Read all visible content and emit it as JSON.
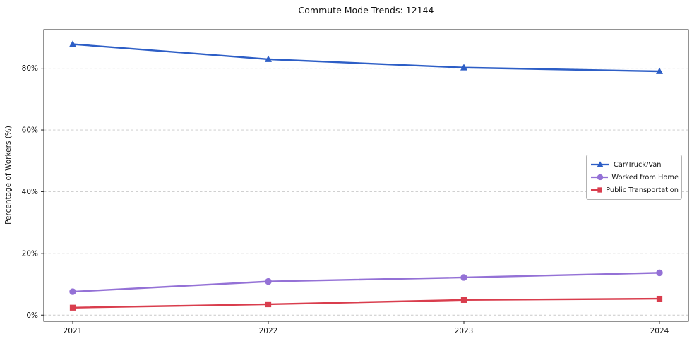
{
  "chart_data": {
    "type": "line",
    "title": "Commute Mode Trends: 12144",
    "xlabel": "",
    "ylabel": "Percentage of Workers (%)",
    "x": [
      2021,
      2022,
      2023,
      2024
    ],
    "x_tick_labels": [
      "2021",
      "2022",
      "2023",
      "2024"
    ],
    "y_ticks": [
      0,
      20,
      40,
      60,
      80
    ],
    "y_tick_labels": [
      "0%",
      "20%",
      "40%",
      "60%",
      "80%"
    ],
    "ylim": [
      -2,
      92.5
    ],
    "grid": "horizontal-dashed",
    "legend_position": "center-right",
    "series": [
      {
        "name": "Car/Truck/Van",
        "color": "#2d5ec6",
        "marker": "triangle",
        "values": [
          87.8,
          82.9,
          80.2,
          79.0
        ]
      },
      {
        "name": "Worked from Home",
        "color": "#9471d6",
        "marker": "circle",
        "values": [
          7.6,
          10.9,
          12.2,
          13.7
        ]
      },
      {
        "name": "Public Transportation",
        "color": "#d93d4d",
        "marker": "square",
        "values": [
          2.4,
          3.5,
          4.9,
          5.3
        ]
      }
    ],
    "colors": {
      "gridline": "#c9c9c9",
      "spine": "#262626",
      "tick_text": "#111111",
      "background": "#ffffff"
    }
  }
}
